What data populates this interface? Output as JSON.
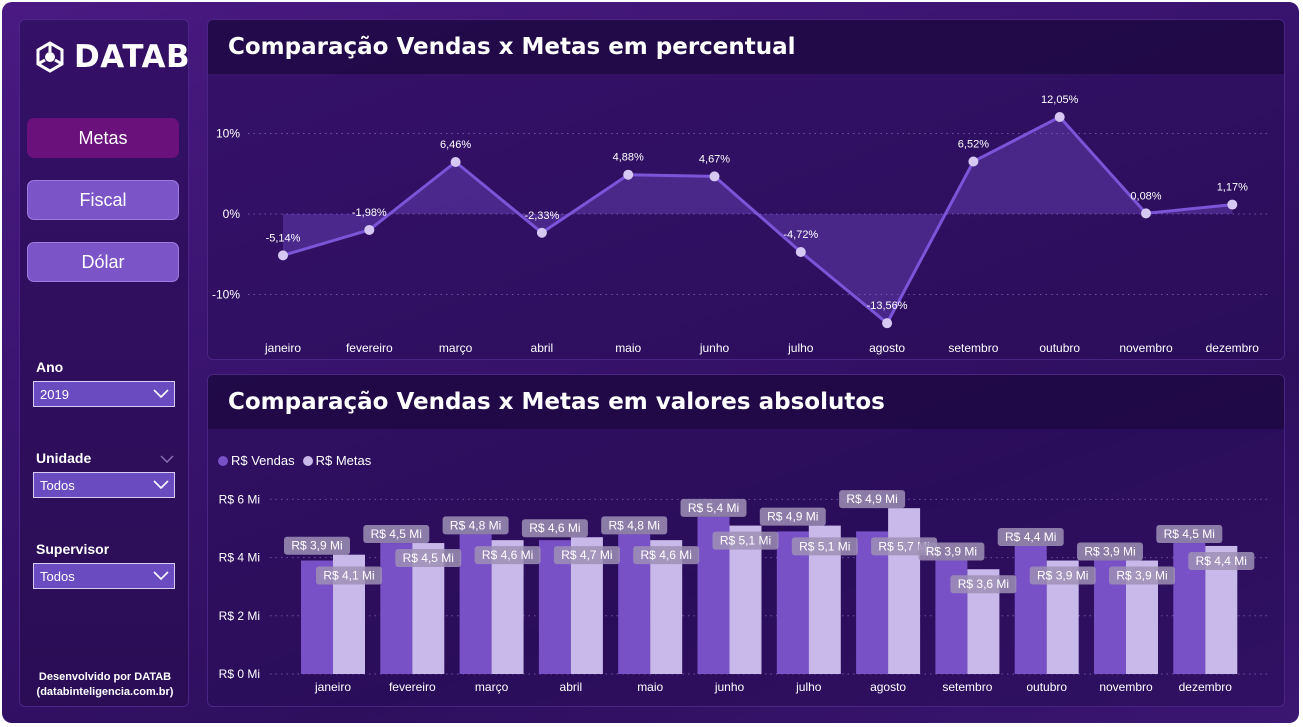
{
  "brand": {
    "logo_text": "DATAB"
  },
  "nav": {
    "items": [
      {
        "label": "Metas",
        "active": true
      },
      {
        "label": "Fiscal",
        "active": false
      },
      {
        "label": "Dólar",
        "active": false
      }
    ]
  },
  "filters": {
    "ano": {
      "label": "Ano",
      "value": "2019"
    },
    "unidade": {
      "label": "Unidade",
      "value": "Todos"
    },
    "supervisor": {
      "label": "Supervisor",
      "value": "Todos"
    }
  },
  "footer": {
    "line1": "Desenvolvido por DATAB",
    "line2": "(databinteligencia.com.br)"
  },
  "colors": {
    "vendas": "#7851c7",
    "metas": "#c9b8ea",
    "line": "#7a55d8",
    "active_nav": "#6a117c"
  },
  "chart_data": [
    {
      "type": "line",
      "title": "Comparação Vendas x Metas em percentual",
      "categories": [
        "janeiro",
        "fevereiro",
        "março",
        "abril",
        "maio",
        "junho",
        "julho",
        "agosto",
        "setembro",
        "outubro",
        "novembro",
        "dezembro"
      ],
      "values": [
        -5.14,
        -1.98,
        6.46,
        -2.33,
        4.88,
        4.67,
        -4.72,
        -13.56,
        6.52,
        12.05,
        0.08,
        1.17
      ],
      "data_labels": [
        "-5,14%",
        "-1,98%",
        "6,46%",
        "-2,33%",
        "4,88%",
        "4,67%",
        "-4,72%",
        "-13,56%",
        "6,52%",
        "12,05%",
        "0,08%",
        "1,17%"
      ],
      "y_ticks": [
        {
          "v": 10,
          "label": "10%"
        },
        {
          "v": 0,
          "label": "0%"
        },
        {
          "v": -10,
          "label": "-10%"
        }
      ],
      "ylim": [
        -15,
        15
      ],
      "grid": true
    },
    {
      "type": "bar",
      "title": "Comparação Vendas x Metas em valores absolutos",
      "categories": [
        "janeiro",
        "fevereiro",
        "março",
        "abril",
        "maio",
        "junho",
        "julho",
        "agosto",
        "setembro",
        "outubro",
        "novembro",
        "dezembro"
      ],
      "series": [
        {
          "name": "R$ Vendas",
          "values": [
            3.9,
            4.5,
            4.8,
            4.6,
            4.8,
            5.4,
            4.9,
            4.9,
            3.9,
            4.4,
            3.9,
            4.5
          ],
          "labels": [
            "R$ 3,9 Mi",
            "R$ 4,5 Mi",
            "R$ 4,8 Mi",
            "R$ 4,6 Mi",
            "R$ 4,8 Mi",
            "R$ 5,4 Mi",
            "R$ 4,9 Mi",
            "R$ 4,9 Mi",
            "R$ 3,9 Mi",
            "R$ 4,4 Mi",
            "R$ 3,9 Mi",
            "R$ 4,5 Mi"
          ]
        },
        {
          "name": "R$ Metas",
          "values": [
            4.1,
            4.5,
            4.6,
            4.7,
            4.6,
            5.1,
            5.1,
            5.7,
            3.6,
            3.9,
            3.9,
            4.4
          ],
          "labels": [
            "R$ 4,1 Mi",
            "R$ 4,5 Mi",
            "R$ 4,6 Mi",
            "R$ 4,7 Mi",
            "R$ 4,6 Mi",
            "R$ 5,1 Mi",
            "R$ 5,1 Mi",
            "R$ 5,7 Mi",
            "R$ 3,6 Mi",
            "R$ 3,9 Mi",
            "R$ 3,9 Mi",
            "R$ 4,4 Mi"
          ]
        }
      ],
      "y_ticks": [
        {
          "v": 0,
          "label": "R$ 0 Mi"
        },
        {
          "v": 2,
          "label": "R$ 2 Mi"
        },
        {
          "v": 4,
          "label": "R$ 4 Mi"
        },
        {
          "v": 6,
          "label": "R$ 6 Mi"
        }
      ],
      "ylim": [
        0,
        6
      ],
      "legend": "top-left",
      "grid": true
    }
  ]
}
